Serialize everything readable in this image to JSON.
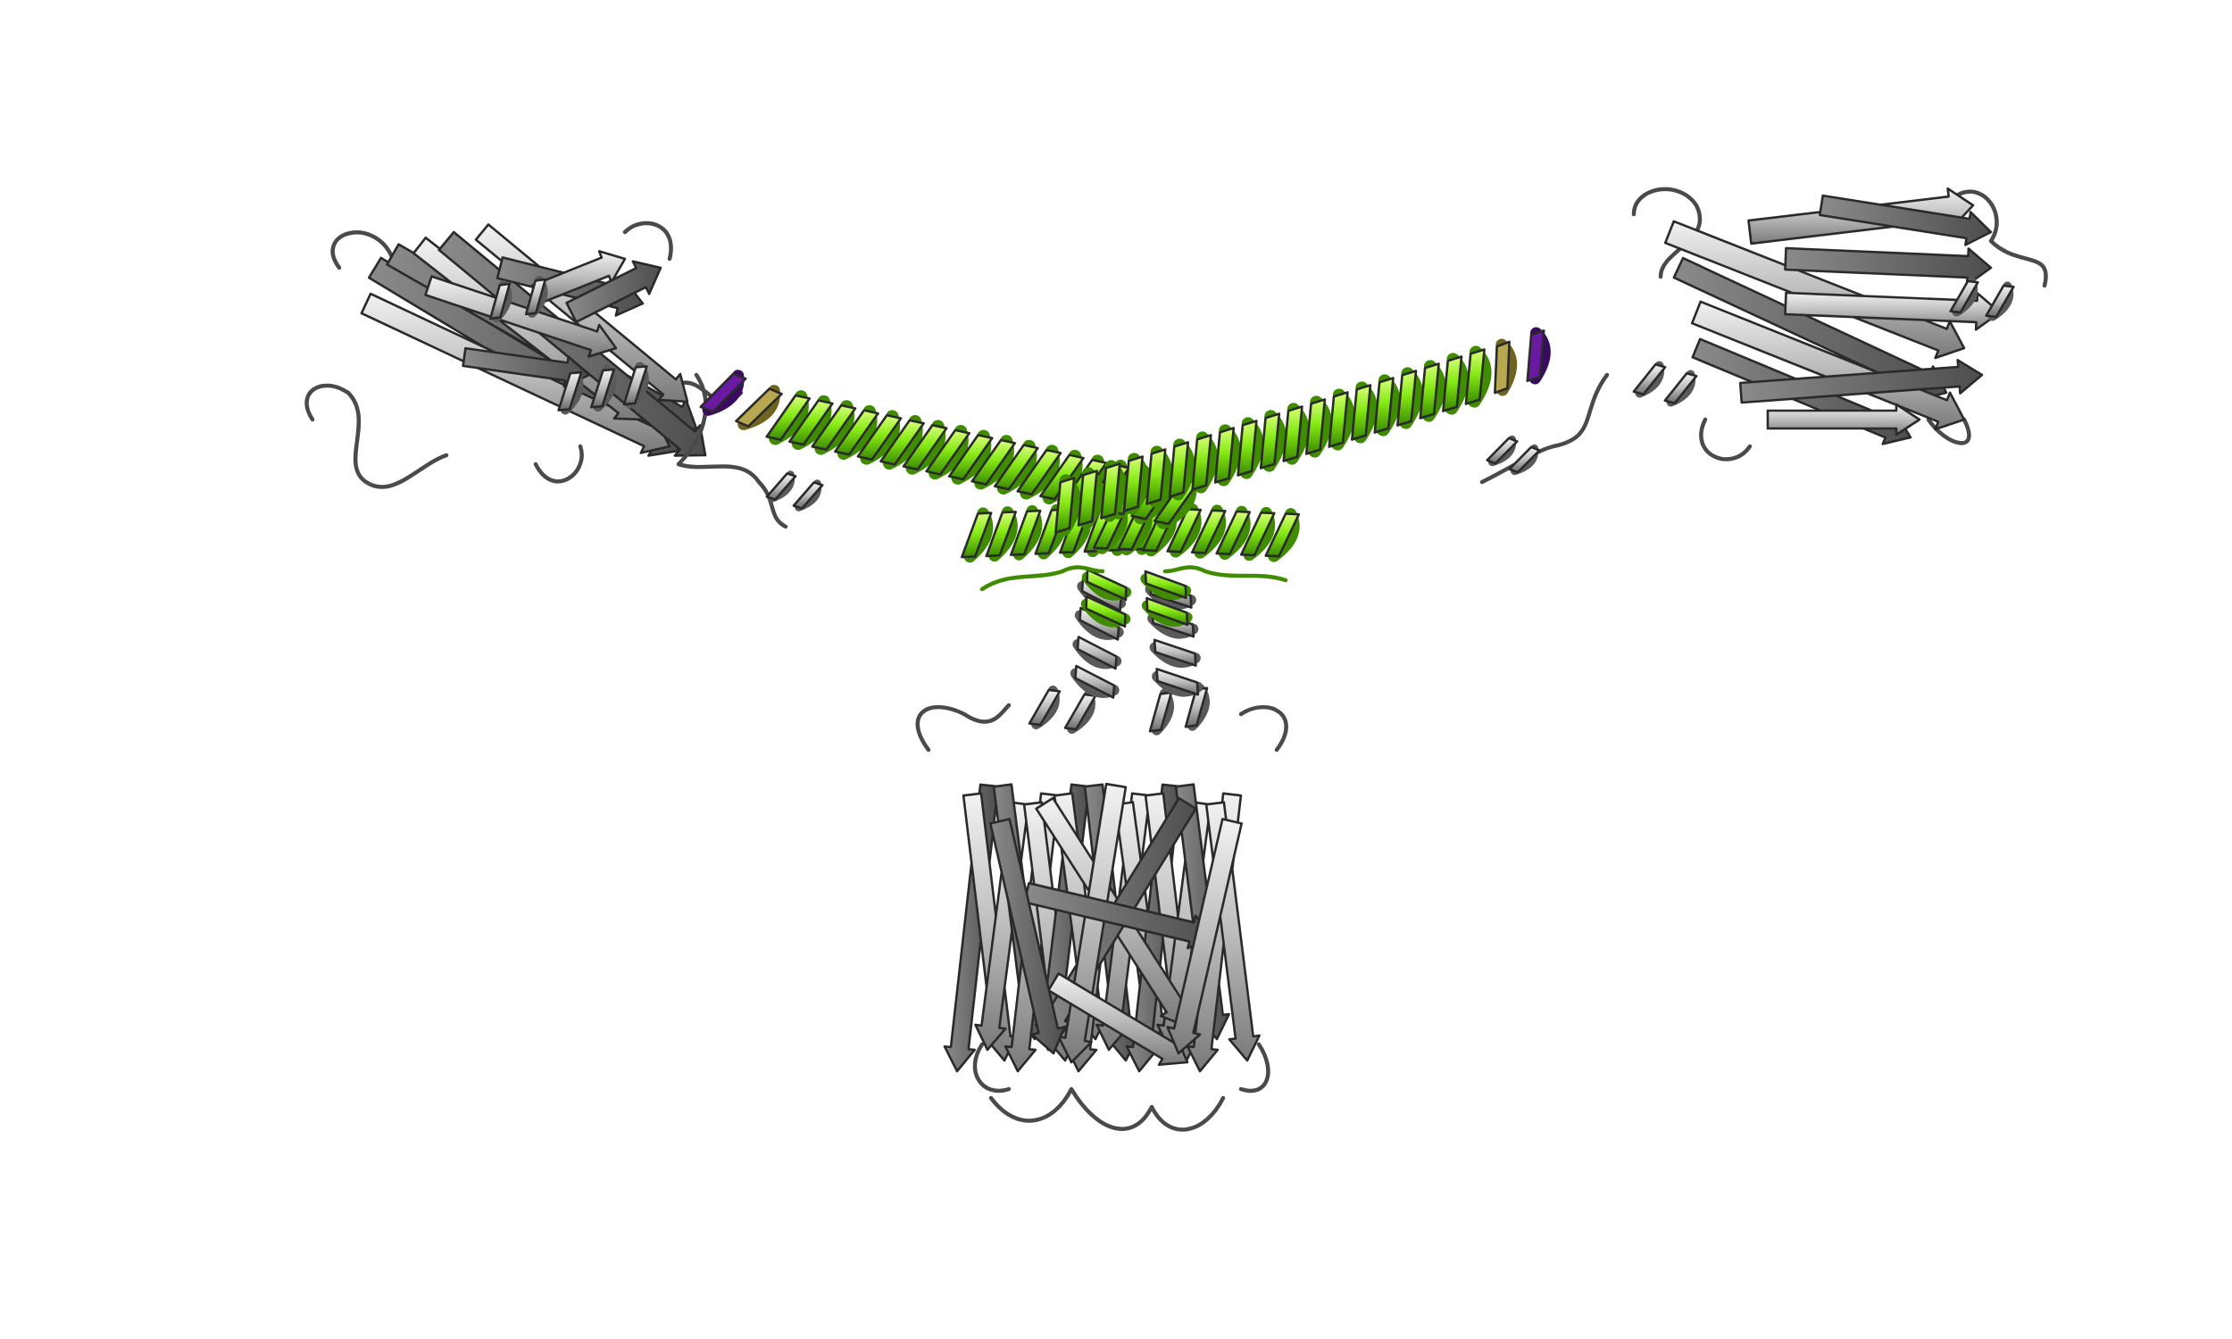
{
  "image": {
    "background_color": "#ffffff",
    "subject": "protein-ribbon-cartoon",
    "colors": {
      "protein_grey_light": "#d8d8d8",
      "protein_grey_mid": "#a6a6a6",
      "protein_grey_dark": "#6e6e6e",
      "helix_green": "#7ee40f",
      "helix_green_dark": "#3f8c00",
      "helix_green_light": "#c9ff66",
      "helix_highlight_olive": "#b7a850",
      "terminal_purple": "#6a1aa0",
      "outline": "#2a2a2a"
    },
    "components": [
      "left-beta-barrel-domain",
      "right-beta-barrel-domain",
      "central-pore-barrel",
      "coiled-coil-helix-left",
      "coiled-coil-helix-right",
      "lower-crossing-helices",
      "short-connector-helices"
    ]
  }
}
